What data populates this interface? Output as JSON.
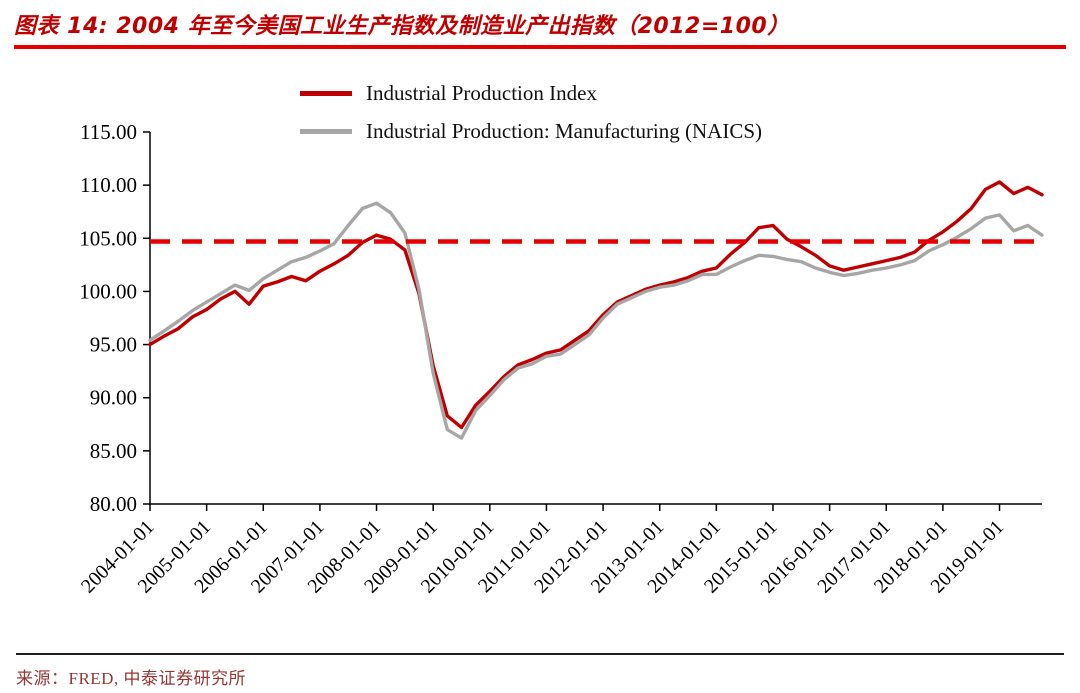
{
  "header": {
    "title": "图表 14:  2004 年至今美国工业生产指数及制造业产出指数（2012=100）"
  },
  "legend": [
    {
      "label": "Industrial Production Index",
      "color": "#c00000"
    },
    {
      "label": "Industrial Production: Manufacturing (NAICS)",
      "color": "#a6a6a6"
    }
  ],
  "footer": {
    "source": "来源：FRED, 中泰证券研究所"
  },
  "chart_data": {
    "type": "line",
    "title": "2004 年至今美国工业生产指数及制造业产出指数（2012=100）",
    "xlabel": "",
    "ylabel": "",
    "ylim": [
      80,
      115
    ],
    "ytick_step": 5,
    "grid": false,
    "legend_position": "top-left-inside",
    "x_unit": "year-month",
    "x": [
      "2004-01",
      "2004-04",
      "2004-07",
      "2004-10",
      "2005-01",
      "2005-04",
      "2005-07",
      "2005-10",
      "2006-01",
      "2006-04",
      "2006-07",
      "2006-10",
      "2007-01",
      "2007-04",
      "2007-07",
      "2007-10",
      "2008-01",
      "2008-04",
      "2008-07",
      "2008-10",
      "2009-01",
      "2009-04",
      "2009-07",
      "2009-10",
      "2010-01",
      "2010-04",
      "2010-07",
      "2010-10",
      "2011-01",
      "2011-04",
      "2011-07",
      "2011-10",
      "2012-01",
      "2012-04",
      "2012-07",
      "2012-10",
      "2013-01",
      "2013-04",
      "2013-07",
      "2013-10",
      "2014-01",
      "2014-04",
      "2014-07",
      "2014-10",
      "2015-01",
      "2015-04",
      "2015-07",
      "2015-10",
      "2016-01",
      "2016-04",
      "2016-07",
      "2016-10",
      "2017-01",
      "2017-04",
      "2017-07",
      "2017-10",
      "2018-01",
      "2018-04",
      "2018-07",
      "2018-10",
      "2019-01",
      "2019-04",
      "2019-07",
      "2019-10"
    ],
    "xtick_labels": [
      "2004-01-01",
      "2005-01-01",
      "2006-01-01",
      "2007-01-01",
      "2008-01-01",
      "2009-01-01",
      "2010-01-01",
      "2011-01-01",
      "2012-01-01",
      "2013-01-01",
      "2014-01-01",
      "2015-01-01",
      "2016-01-01",
      "2017-01-01",
      "2018-01-01",
      "2019-01-01"
    ],
    "series": [
      {
        "id": "industrial-production-index",
        "name": "Industrial Production Index",
        "color": "#c00000",
        "values": [
          95.0,
          95.8,
          96.5,
          97.6,
          98.3,
          99.3,
          100.0,
          98.8,
          100.5,
          100.9,
          101.4,
          101.0,
          101.9,
          102.6,
          103.4,
          104.6,
          105.3,
          104.9,
          103.9,
          99.8,
          93.0,
          88.3,
          87.2,
          89.3,
          90.6,
          92.0,
          93.1,
          93.6,
          94.2,
          94.5,
          95.4,
          96.3,
          97.8,
          99.0,
          99.6,
          100.2,
          100.6,
          100.9,
          101.3,
          101.9,
          102.2,
          103.5,
          104.6,
          106.0,
          106.2,
          104.9,
          104.2,
          103.4,
          102.4,
          102.0,
          102.3,
          102.6,
          102.9,
          103.2,
          103.7,
          104.8,
          105.6,
          106.6,
          107.8,
          109.6,
          110.3,
          109.2,
          109.8,
          109.1
        ]
      },
      {
        "id": "industrial-production-manufacturing-naics",
        "name": "Industrial Production: Manufacturing (NAICS)",
        "color": "#a6a6a6",
        "values": [
          95.4,
          96.3,
          97.2,
          98.2,
          99.0,
          99.8,
          100.6,
          100.1,
          101.2,
          102.0,
          102.8,
          103.2,
          103.8,
          104.5,
          106.2,
          107.8,
          108.3,
          107.4,
          105.5,
          100.2,
          92.3,
          87.0,
          86.2,
          88.8,
          90.2,
          91.7,
          92.8,
          93.2,
          93.9,
          94.1,
          95.0,
          95.9,
          97.5,
          98.8,
          99.4,
          100.0,
          100.4,
          100.6,
          101.0,
          101.6,
          101.6,
          102.3,
          102.9,
          103.4,
          103.3,
          103.0,
          102.8,
          102.2,
          101.8,
          101.5,
          101.7,
          102.0,
          102.2,
          102.5,
          102.9,
          103.8,
          104.4,
          105.1,
          105.9,
          106.9,
          107.2,
          105.7,
          106.2,
          105.3
        ]
      }
    ],
    "reference_line": {
      "value": 104.7,
      "color": "#e60000",
      "style": "dashed"
    }
  }
}
